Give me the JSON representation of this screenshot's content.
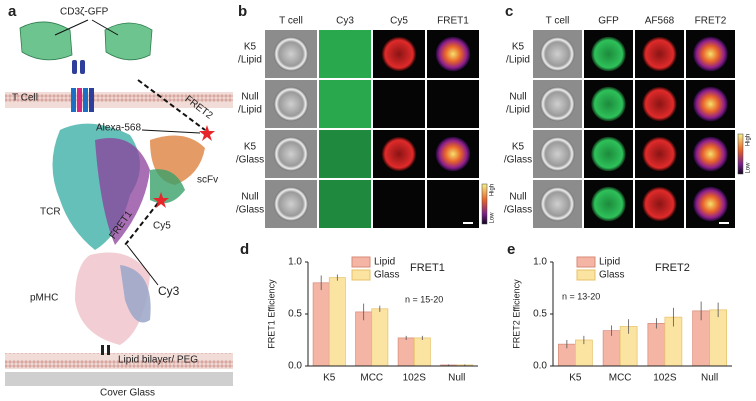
{
  "panel_labels": [
    "a",
    "b",
    "c",
    "d",
    "e"
  ],
  "panel_a": {
    "labels": [
      "CD3ζ-GFP",
      "FRET2",
      "T Cell",
      "Alexa-568",
      "TCR",
      "scFv",
      "Cy5",
      "FRET1",
      "pMHC",
      "Cy3",
      "Lipid bilayer/ PEG",
      "Cover Glass"
    ]
  },
  "panel_b": {
    "columns": [
      "T cell",
      "Cy3",
      "Cy5",
      "FRET1"
    ],
    "rows": [
      [
        "K5",
        "/Lipid"
      ],
      [
        "Null",
        "/Lipid"
      ],
      [
        "K5",
        "/Glass"
      ],
      [
        "Null",
        "/Glass"
      ]
    ],
    "colorbar": [
      "High",
      "Low"
    ]
  },
  "panel_c": {
    "columns": [
      "T cell",
      "GFP",
      "AF568",
      "FRET2"
    ],
    "rows": [
      [
        "K5",
        "/Lipid"
      ],
      [
        "Null",
        "/Lipid"
      ],
      [
        "K5",
        "/Glass"
      ],
      [
        "Null",
        "/Glass"
      ]
    ],
    "colorbar": [
      "High",
      "Low"
    ]
  },
  "chart_data": [
    {
      "type": "bar",
      "title": "FRET1",
      "y_label": "FRET1 Efficiency",
      "annotation": "n = 15-20",
      "categories": [
        "K5",
        "MCC",
        "102S",
        "Null"
      ],
      "series": [
        {
          "name": "Lipid",
          "color": "#f4b5a4",
          "values": [
            0.8,
            0.52,
            0.27,
            0.01
          ],
          "errors": [
            0.07,
            0.08,
            0.02,
            0.005
          ]
        },
        {
          "name": "Glass",
          "color": "#fbe3a2",
          "values": [
            0.85,
            0.55,
            0.27,
            0.01
          ],
          "errors": [
            0.03,
            0.03,
            0.02,
            0.005
          ]
        }
      ],
      "ylim": [
        0,
        1
      ],
      "yticks": [
        {
          "value": 0,
          "label": "0.0"
        },
        0.5,
        {
          "value": 1,
          "label": "1.0"
        }
      ]
    },
    {
      "type": "bar",
      "title": "FRET2",
      "y_label": "FRET2 Efficiency",
      "annotation": "n = 13-20",
      "categories": [
        "K5",
        "MCC",
        "102S",
        "Null"
      ],
      "series": [
        {
          "name": "Lipid",
          "color": "#f4b5a4",
          "values": [
            0.21,
            0.34,
            0.41,
            0.53
          ],
          "errors": [
            0.04,
            0.05,
            0.05,
            0.09
          ]
        },
        {
          "name": "Glass",
          "color": "#fbe3a2",
          "values": [
            0.25,
            0.38,
            0.47,
            0.54
          ],
          "errors": [
            0.04,
            0.07,
            0.09,
            0.07
          ]
        }
      ],
      "ylim": [
        0,
        1
      ],
      "yticks": [
        {
          "value": 0,
          "label": "0.0"
        },
        0.5,
        {
          "value": 1,
          "label": "1.0"
        }
      ]
    }
  ]
}
